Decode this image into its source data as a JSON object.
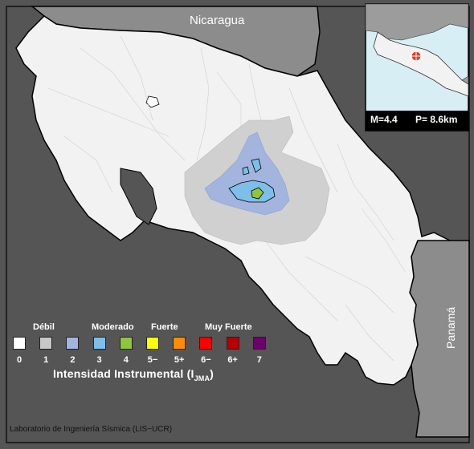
{
  "map": {
    "country_labels": {
      "north": "Nicaragua",
      "east": "Panamá"
    },
    "credit": "Laboratorio de Ingeniería Sísmica (LIS−UCR)",
    "colors": {
      "sea": "#555555",
      "land_neighbor": "#8c8c8c",
      "land_main": "#f2f2f2",
      "intensity_1": "#d0d0d0",
      "intensity_2": "#a3b5de",
      "intensity_3": "#7dbfe8",
      "intensity_4": "#8fc63e",
      "epicenter": "#e8392b"
    }
  },
  "inset": {
    "magnitude": "M=4.4",
    "depth": "P=  8.6km"
  },
  "legend": {
    "title": "Intensidad Instrumental (I",
    "title_sub": "JMA",
    "title_end": ")",
    "categories": [
      "Débil",
      "Moderado",
      "Fuerte",
      "Muy Fuerte"
    ],
    "levels": [
      {
        "label": "0",
        "color": "#ffffff"
      },
      {
        "label": "1",
        "color": "#c8c8c8"
      },
      {
        "label": "2",
        "color": "#a3b5de"
      },
      {
        "label": "3",
        "color": "#7dbfe8"
      },
      {
        "label": "4",
        "color": "#8fc63e"
      },
      {
        "label": "5−",
        "color": "#ffff00"
      },
      {
        "label": "5+",
        "color": "#ff8c00"
      },
      {
        "label": "6−",
        "color": "#ff0000"
      },
      {
        "label": "6+",
        "color": "#b80000"
      },
      {
        "label": "7",
        "color": "#6b006b"
      }
    ]
  }
}
